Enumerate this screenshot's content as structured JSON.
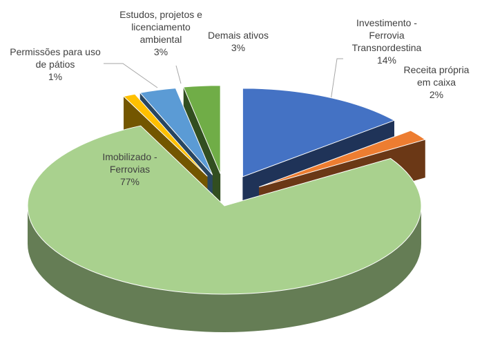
{
  "chart_data": {
    "type": "pie",
    "categories": [
      "Investimento - Ferrovia Transnordestina",
      "Receita própria em caixa",
      "Imobilizado - Ferrovias",
      "Permissões para uso de pátios",
      "Estudos, projetos e licenciamento ambiental",
      "Demais ativos"
    ],
    "values": [
      14,
      2,
      77,
      1,
      3,
      3
    ],
    "value_labels": [
      "14%",
      "2%",
      "77%",
      "1%",
      "3%",
      "3%"
    ],
    "colors": [
      "#4472c4",
      "#ed7d31",
      "#a9d18e",
      "#ffc000",
      "#5b9bd5",
      "#70ad47"
    ]
  }
}
